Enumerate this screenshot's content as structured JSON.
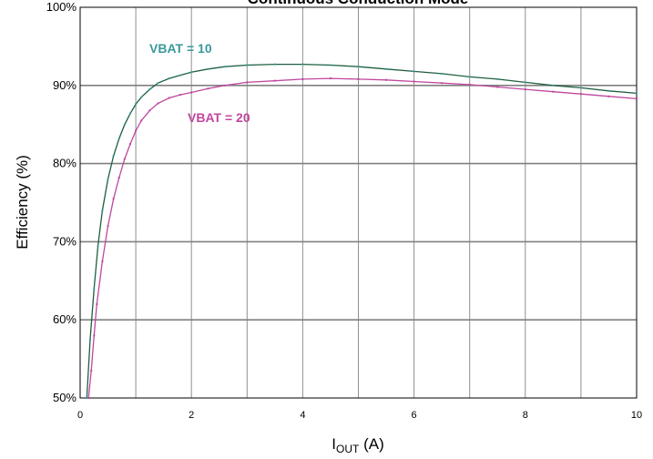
{
  "chart_data": {
    "type": "line",
    "title": "Continuous Conduction Mode",
    "ylabel": "Efficiency (%)",
    "xlabel_main": "I",
    "xlabel_sub": "OUT",
    "xlabel_unit": " (A)",
    "xlim": [
      0,
      10
    ],
    "ylim": [
      50,
      100
    ],
    "xticks": [
      0,
      2,
      4,
      6,
      8,
      10
    ],
    "yticks": [
      50,
      60,
      70,
      80,
      90,
      100
    ],
    "ytick_labels": [
      "50%",
      "60%",
      "70%",
      "80%",
      "90%",
      "100%"
    ],
    "grid": true,
    "colors": {
      "vbat10": "#3a9a9c",
      "vbat10_line": "#1f5f3f",
      "vbat20": "#c0479e",
      "grid": "#808080"
    },
    "series": [
      {
        "name": "VBAT = 10",
        "color": "#3a9a9c",
        "x": [
          0.12,
          0.18,
          0.25,
          0.32,
          0.4,
          0.5,
          0.6,
          0.7,
          0.8,
          0.9,
          1.0,
          1.1,
          1.25,
          1.4,
          1.6,
          1.8,
          2.0,
          2.3,
          2.6,
          3.0,
          3.5,
          4.0,
          4.5,
          5.0,
          5.5,
          6.0,
          6.5,
          7.0,
          7.5,
          8.0,
          8.5,
          9.0,
          9.5,
          10.0
        ],
        "y": [
          50.0,
          57.5,
          64.0,
          69.5,
          74.0,
          78.0,
          81.0,
          83.2,
          85.0,
          86.4,
          87.6,
          88.5,
          89.5,
          90.3,
          90.9,
          91.3,
          91.7,
          92.1,
          92.4,
          92.6,
          92.7,
          92.7,
          92.6,
          92.4,
          92.1,
          91.8,
          91.5,
          91.1,
          90.8,
          90.4,
          90.0,
          89.7,
          89.3,
          89.0
        ]
      },
      {
        "name": "VBAT = 20",
        "color": "#c0479e",
        "x": [
          0.15,
          0.2,
          0.25,
          0.3,
          0.4,
          0.5,
          0.6,
          0.7,
          0.8,
          0.9,
          1.0,
          1.1,
          1.25,
          1.4,
          1.6,
          1.8,
          2.0,
          2.3,
          2.6,
          3.0,
          3.5,
          4.0,
          4.5,
          5.0,
          5.5,
          6.0,
          6.5,
          7.0,
          7.5,
          8.0,
          8.5,
          9.0,
          9.5,
          10.0
        ],
        "y": [
          50.0,
          53.5,
          58.0,
          62.0,
          67.5,
          72.0,
          75.5,
          78.2,
          80.6,
          82.5,
          84.2,
          85.5,
          86.8,
          87.7,
          88.4,
          88.8,
          89.1,
          89.6,
          90.0,
          90.4,
          90.6,
          90.8,
          90.9,
          90.8,
          90.7,
          90.5,
          90.3,
          90.1,
          89.8,
          89.5,
          89.2,
          88.9,
          88.6,
          88.3
        ]
      }
    ]
  }
}
